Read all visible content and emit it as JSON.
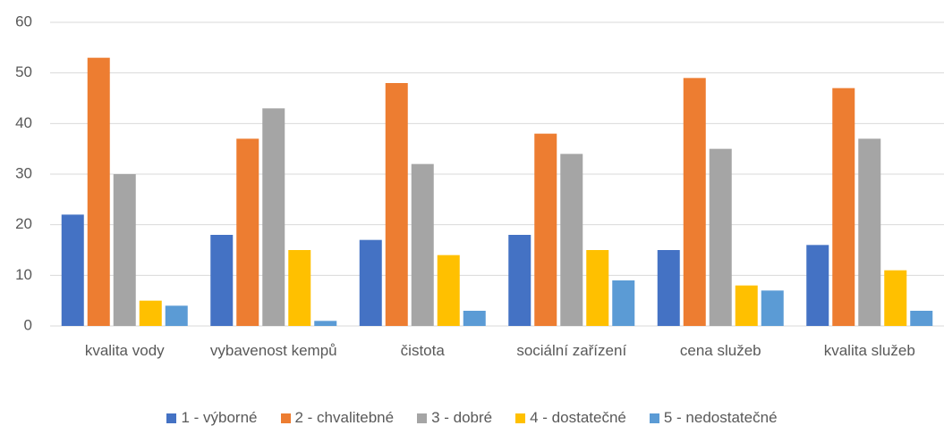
{
  "chart_data": {
    "type": "bar",
    "categories": [
      "kvalita vody",
      "vybavenost kempů",
      "čistota",
      "sociální zařízení",
      "cena služeb",
      "kvalita služeb"
    ],
    "series": [
      {
        "name": "1 - výborné",
        "color": "#4472c4",
        "values": [
          22,
          18,
          17,
          18,
          15,
          16
        ]
      },
      {
        "name": "2 - chvalitebné",
        "color": "#ed7d31",
        "values": [
          53,
          37,
          48,
          38,
          49,
          47
        ]
      },
      {
        "name": "3 - dobré",
        "color": "#a5a5a5",
        "values": [
          30,
          43,
          32,
          34,
          35,
          37
        ]
      },
      {
        "name": "4 - dostatečné",
        "color": "#ffc000",
        "values": [
          5,
          15,
          14,
          15,
          8,
          11
        ]
      },
      {
        "name": "5 - nedostatečné",
        "color": "#5b9bd5",
        "values": [
          4,
          1,
          3,
          9,
          7,
          3
        ]
      }
    ],
    "ylim": [
      0,
      60
    ],
    "yticks": [
      0,
      10,
      20,
      30,
      40,
      50,
      60
    ],
    "grid": true,
    "legend": "bottom"
  }
}
